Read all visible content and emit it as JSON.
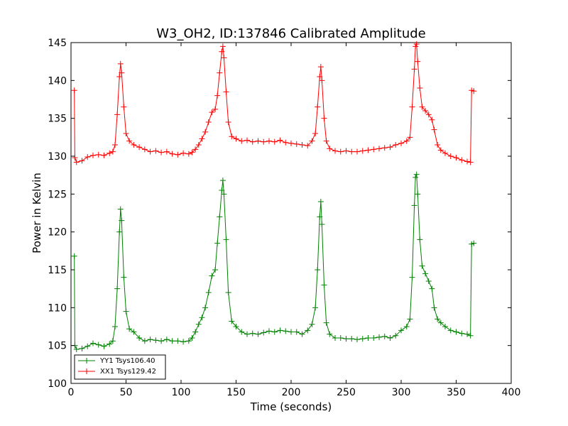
{
  "chart_data": {
    "type": "line",
    "title": "W3_OH2, ID:137846 Calibrated Amplitude",
    "xlabel": "Time (seconds)",
    "ylabel": "Power in Kelvin",
    "xlim": [
      0,
      400
    ],
    "ylim": [
      100,
      145
    ],
    "xticks": [
      0,
      50,
      100,
      150,
      200,
      250,
      300,
      350,
      400
    ],
    "yticks": [
      100,
      105,
      110,
      115,
      120,
      125,
      130,
      135,
      140,
      145
    ],
    "grid": false,
    "legend": "bottom-left",
    "series": [
      {
        "name": "YY1 Tsys106.40",
        "color": "#008000",
        "marker": "+",
        "points": [
          [
            3,
            116.8
          ],
          [
            3.5,
            105.0
          ],
          [
            5,
            104.5
          ],
          [
            10,
            104.6
          ],
          [
            15,
            104.9
          ],
          [
            20,
            105.3
          ],
          [
            25,
            105.1
          ],
          [
            30,
            104.9
          ],
          [
            35,
            105.2
          ],
          [
            38,
            105.6
          ],
          [
            40,
            107.5
          ],
          [
            42,
            112.5
          ],
          [
            44,
            120.0
          ],
          [
            45,
            123.0
          ],
          [
            46,
            121.5
          ],
          [
            48,
            114.0
          ],
          [
            50,
            109.5
          ],
          [
            53,
            107.2
          ],
          [
            57,
            106.8
          ],
          [
            62,
            106.0
          ],
          [
            67,
            105.6
          ],
          [
            72,
            105.8
          ],
          [
            77,
            105.7
          ],
          [
            82,
            105.6
          ],
          [
            87,
            105.8
          ],
          [
            92,
            105.6
          ],
          [
            97,
            105.6
          ],
          [
            102,
            105.5
          ],
          [
            107,
            105.6
          ],
          [
            110,
            106.0
          ],
          [
            113,
            106.8
          ],
          [
            116,
            107.8
          ],
          [
            119,
            108.7
          ],
          [
            122,
            110.0
          ],
          [
            125,
            112.0
          ],
          [
            128,
            114.2
          ],
          [
            131,
            115.0
          ],
          [
            133,
            118.5
          ],
          [
            135,
            122.0
          ],
          [
            137,
            125.5
          ],
          [
            138,
            126.8
          ],
          [
            139,
            125.0
          ],
          [
            141,
            119.0
          ],
          [
            143,
            112.0
          ],
          [
            146,
            108.2
          ],
          [
            150,
            107.5
          ],
          [
            155,
            106.8
          ],
          [
            160,
            106.5
          ],
          [
            165,
            106.6
          ],
          [
            170,
            106.5
          ],
          [
            175,
            106.7
          ],
          [
            180,
            106.9
          ],
          [
            185,
            106.8
          ],
          [
            190,
            107.0
          ],
          [
            195,
            106.9
          ],
          [
            200,
            106.8
          ],
          [
            205,
            106.8
          ],
          [
            210,
            106.5
          ],
          [
            215,
            107.0
          ],
          [
            219,
            107.8
          ],
          [
            222,
            110.0
          ],
          [
            224,
            115.0
          ],
          [
            226,
            122.0
          ],
          [
            227,
            124.0
          ],
          [
            228,
            121.0
          ],
          [
            230,
            113.0
          ],
          [
            232,
            108.0
          ],
          [
            235,
            106.5
          ],
          [
            240,
            106.0
          ],
          [
            245,
            106.0
          ],
          [
            250,
            105.9
          ],
          [
            255,
            105.9
          ],
          [
            260,
            105.8
          ],
          [
            265,
            105.9
          ],
          [
            270,
            106.0
          ],
          [
            275,
            106.0
          ],
          [
            280,
            106.1
          ],
          [
            285,
            106.2
          ],
          [
            290,
            106.0
          ],
          [
            295,
            106.3
          ],
          [
            300,
            107.0
          ],
          [
            305,
            107.5
          ],
          [
            308,
            108.5
          ],
          [
            310,
            114.0
          ],
          [
            312,
            123.5
          ],
          [
            313,
            127.2
          ],
          [
            314,
            127.6
          ],
          [
            315,
            125.0
          ],
          [
            317,
            119.0
          ],
          [
            319,
            115.5
          ],
          [
            322,
            114.5
          ],
          [
            325,
            113.5
          ],
          [
            328,
            112.5
          ],
          [
            330,
            110.0
          ],
          [
            333,
            108.5
          ],
          [
            336,
            108.0
          ],
          [
            340,
            107.5
          ],
          [
            345,
            107.0
          ],
          [
            350,
            106.8
          ],
          [
            355,
            106.6
          ],
          [
            360,
            106.5
          ],
          [
            363,
            106.3
          ],
          [
            364,
            118.4
          ],
          [
            366,
            118.5
          ]
        ]
      },
      {
        "name": "XX1 Tsys129.42",
        "color": "#ff0000",
        "marker": "+",
        "points": [
          [
            3,
            138.7
          ],
          [
            3.5,
            129.8
          ],
          [
            5,
            129.2
          ],
          [
            10,
            129.4
          ],
          [
            15,
            129.9
          ],
          [
            20,
            130.1
          ],
          [
            25,
            130.2
          ],
          [
            30,
            130.1
          ],
          [
            35,
            130.4
          ],
          [
            38,
            130.6
          ],
          [
            40,
            131.5
          ],
          [
            42,
            135.5
          ],
          [
            44,
            140.5
          ],
          [
            45,
            142.2
          ],
          [
            46,
            141.0
          ],
          [
            48,
            136.5
          ],
          [
            50,
            133.0
          ],
          [
            53,
            132.0
          ],
          [
            57,
            131.5
          ],
          [
            62,
            131.2
          ],
          [
            67,
            130.9
          ],
          [
            72,
            130.6
          ],
          [
            77,
            130.7
          ],
          [
            82,
            130.5
          ],
          [
            87,
            130.6
          ],
          [
            92,
            130.3
          ],
          [
            97,
            130.2
          ],
          [
            102,
            130.4
          ],
          [
            107,
            130.3
          ],
          [
            110,
            130.5
          ],
          [
            113,
            130.9
          ],
          [
            116,
            131.5
          ],
          [
            119,
            132.3
          ],
          [
            122,
            133.2
          ],
          [
            125,
            134.5
          ],
          [
            128,
            135.8
          ],
          [
            131,
            136.2
          ],
          [
            133,
            138.0
          ],
          [
            135,
            141.0
          ],
          [
            137,
            143.8
          ],
          [
            138,
            144.5
          ],
          [
            139,
            143.0
          ],
          [
            141,
            138.5
          ],
          [
            143,
            134.5
          ],
          [
            146,
            132.6
          ],
          [
            150,
            132.3
          ],
          [
            155,
            132.0
          ],
          [
            160,
            132.1
          ],
          [
            165,
            131.9
          ],
          [
            170,
            132.0
          ],
          [
            175,
            131.9
          ],
          [
            180,
            132.0
          ],
          [
            185,
            131.9
          ],
          [
            190,
            132.1
          ],
          [
            195,
            131.8
          ],
          [
            200,
            131.7
          ],
          [
            205,
            131.6
          ],
          [
            210,
            131.5
          ],
          [
            215,
            131.4
          ],
          [
            219,
            132.0
          ],
          [
            222,
            133.0
          ],
          [
            224,
            136.5
          ],
          [
            226,
            140.5
          ],
          [
            227,
            141.8
          ],
          [
            228,
            140.0
          ],
          [
            230,
            135.0
          ],
          [
            232,
            132.0
          ],
          [
            235,
            131.0
          ],
          [
            240,
            130.7
          ],
          [
            245,
            130.6
          ],
          [
            250,
            130.7
          ],
          [
            255,
            130.6
          ],
          [
            260,
            130.6
          ],
          [
            265,
            130.7
          ],
          [
            270,
            130.8
          ],
          [
            275,
            130.9
          ],
          [
            280,
            131.0
          ],
          [
            285,
            131.1
          ],
          [
            290,
            131.2
          ],
          [
            295,
            131.5
          ],
          [
            300,
            131.7
          ],
          [
            305,
            132.0
          ],
          [
            308,
            132.5
          ],
          [
            310,
            136.5
          ],
          [
            312,
            141.5
          ],
          [
            313,
            144.5
          ],
          [
            314,
            144.8
          ],
          [
            315,
            142.5
          ],
          [
            317,
            139.0
          ],
          [
            319,
            136.5
          ],
          [
            322,
            136.0
          ],
          [
            325,
            135.5
          ],
          [
            328,
            134.8
          ],
          [
            330,
            133.5
          ],
          [
            333,
            131.5
          ],
          [
            336,
            130.8
          ],
          [
            340,
            130.4
          ],
          [
            345,
            130.0
          ],
          [
            350,
            129.8
          ],
          [
            355,
            129.5
          ],
          [
            360,
            129.3
          ],
          [
            363,
            129.2
          ],
          [
            364,
            138.7
          ],
          [
            366,
            138.6
          ]
        ]
      }
    ]
  }
}
